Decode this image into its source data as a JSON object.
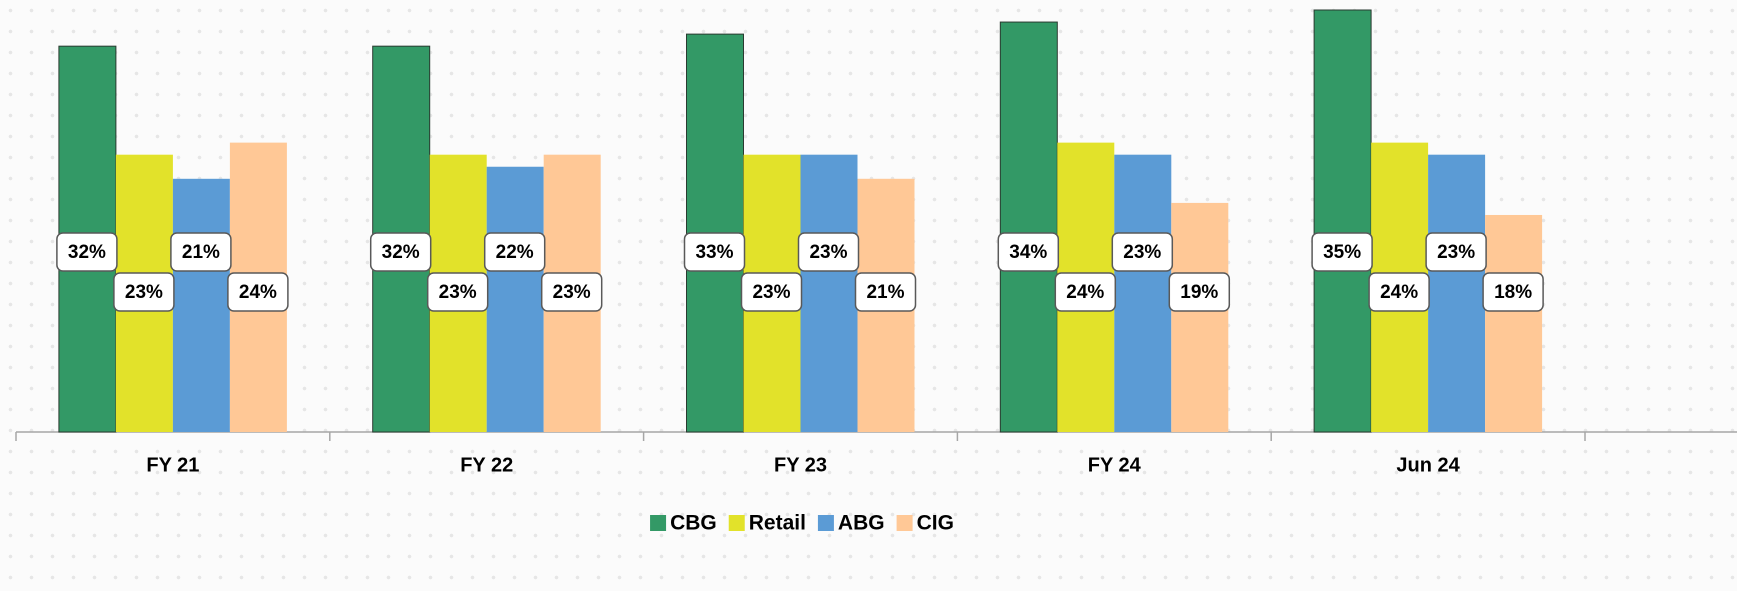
{
  "chart_data": {
    "type": "bar",
    "categories": [
      "FY 21",
      "FY 22",
      "FY 23",
      "FY 24",
      "Jun 24"
    ],
    "series": [
      {
        "name": "CBG",
        "color": "#339966",
        "values": [
          32,
          32,
          33,
          34,
          35
        ],
        "value_labels": [
          "32%",
          "32%",
          "33%",
          "34%",
          "35%"
        ]
      },
      {
        "name": "Retail",
        "color": "#e2e22a",
        "values": [
          23,
          23,
          23,
          24,
          24
        ],
        "value_labels": [
          "23%",
          "23%",
          "23%",
          "24%",
          "24%"
        ]
      },
      {
        "name": "ABG",
        "color": "#5b9bd5",
        "values": [
          21,
          22,
          23,
          23,
          23
        ],
        "value_labels": [
          "21%",
          "22%",
          "23%",
          "23%",
          "23%"
        ]
      },
      {
        "name": "CIG",
        "color": "#ffc896",
        "values": [
          24,
          23,
          21,
          19,
          18
        ],
        "value_labels": [
          "24%",
          "23%",
          "21%",
          "19%",
          "18%"
        ]
      }
    ],
    "legend": "bottom"
  }
}
